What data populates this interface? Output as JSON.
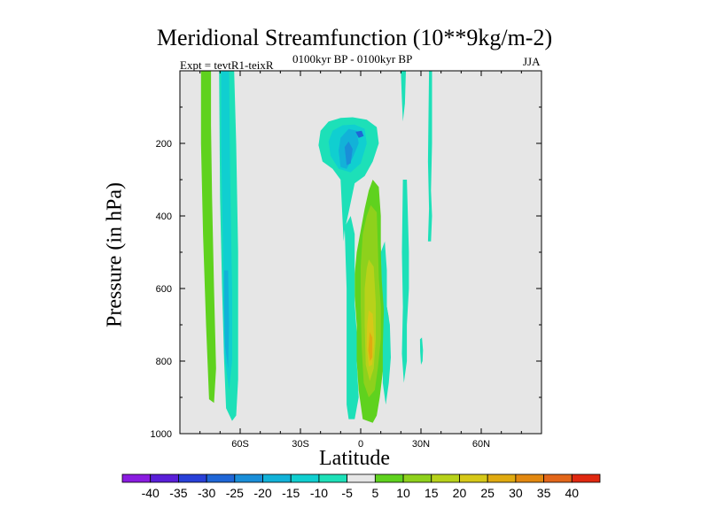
{
  "chart_data": {
    "type": "contour",
    "title": "Meridional Streamfunction (10**9kg/m-2)",
    "left_string": "Expt = tevtR1-teixR",
    "center_string": "0100kyr BP - 0100kyr BP",
    "right_string": "JJA",
    "xlabel": "Latitude",
    "ylabel": "Pressure (in hPa)",
    "xlim": [
      -90,
      90
    ],
    "ylim": [
      1000,
      0
    ],
    "x_ticks": [
      -60,
      -30,
      0,
      30,
      60
    ],
    "x_tick_labels": [
      "60S",
      "30S",
      "0",
      "30N",
      "60N"
    ],
    "y_ticks": [
      200,
      400,
      600,
      800,
      1000
    ],
    "y_tick_labels": [
      "200",
      "400",
      "600",
      "800",
      "1000"
    ],
    "missing_color": "#e6e6e6",
    "levels": [
      -40,
      -35,
      -30,
      -25,
      -20,
      -15,
      -10,
      -5,
      5,
      10,
      15,
      20,
      25,
      30,
      35,
      40
    ],
    "level_labels": [
      "-40",
      "-35",
      "-30",
      "-25",
      "-20",
      "-15",
      "-10",
      "-5",
      "5",
      "10",
      "15",
      "20",
      "25",
      "30",
      "35",
      "40"
    ],
    "colors": [
      "#8a1ce0",
      "#5a1fd8",
      "#2840d8",
      "#1f66d6",
      "#1a8ed8",
      "#12b2d8",
      "#10cfd0",
      "#1de0b8",
      "#e6e6e6",
      "#5fd21e",
      "#8ed11c",
      "#b7d21a",
      "#d6c818",
      "#e0aa10",
      "#e28810",
      "#e2661a",
      "#e02810"
    ],
    "features": [
      {
        "name": "sh-band-green",
        "value": 7,
        "color": "#5fd21e",
        "points": [
          [
            -79.5,
            0
          ],
          [
            -74.5,
            0
          ],
          [
            -74.5,
            150
          ],
          [
            -74,
            350
          ],
          [
            -73,
            600
          ],
          [
            -72,
            820
          ],
          [
            -73,
            915
          ],
          [
            -75.5,
            905
          ],
          [
            -77,
            700
          ],
          [
            -78.5,
            450
          ],
          [
            -79.5,
            200
          ]
        ]
      },
      {
        "name": "sh-band-outer",
        "value": -7,
        "color": "#1de0b8",
        "points": [
          [
            -70.5,
            0
          ],
          [
            -63,
            0
          ],
          [
            -62,
            200
          ],
          [
            -61,
            500
          ],
          [
            -61,
            700
          ],
          [
            -61,
            850
          ],
          [
            -62,
            950
          ],
          [
            -64,
            965
          ],
          [
            -67,
            930
          ],
          [
            -68,
            800
          ],
          [
            -69,
            600
          ],
          [
            -70,
            350
          ]
        ]
      },
      {
        "name": "sh-band-inner",
        "value": -12,
        "color": "#10cfd0",
        "points": [
          [
            -69.5,
            0
          ],
          [
            -65.5,
            0
          ],
          [
            -65,
            300
          ],
          [
            -64,
            600
          ],
          [
            -64,
            800
          ],
          [
            -65.5,
            880
          ],
          [
            -68,
            780
          ],
          [
            -68.5,
            500
          ],
          [
            -69.5,
            200
          ]
        ]
      },
      {
        "name": "sh-band-core",
        "value": -17,
        "color": "#12b2d8",
        "points": [
          [
            -68,
            550
          ],
          [
            -66,
            550
          ],
          [
            -65.5,
            700
          ],
          [
            -66,
            820
          ],
          [
            -67.5,
            760
          ],
          [
            -68,
            650
          ]
        ]
      },
      {
        "name": "upper-cell-outer",
        "value": -7,
        "color": "#1de0b8",
        "points": [
          [
            -20,
            165
          ],
          [
            -16,
            140
          ],
          [
            -10,
            130
          ],
          [
            -4,
            128
          ],
          [
            3,
            135
          ],
          [
            8,
            155
          ],
          [
            9,
            200
          ],
          [
            6,
            250
          ],
          [
            2,
            290
          ],
          [
            -3,
            310
          ],
          [
            -6,
            390
          ],
          [
            -8,
            440
          ],
          [
            -8.5,
            470
          ],
          [
            -10,
            300
          ],
          [
            -14,
            270
          ],
          [
            -19,
            250
          ],
          [
            -21,
            205
          ]
        ]
      },
      {
        "name": "upper-cell-mid",
        "value": -12,
        "color": "#10cfd0",
        "points": [
          [
            -14,
            165
          ],
          [
            -9,
            150
          ],
          [
            -3,
            148
          ],
          [
            2,
            160
          ],
          [
            3,
            200
          ],
          [
            0,
            255
          ],
          [
            -5,
            280
          ],
          [
            -11,
            270
          ],
          [
            -15,
            235
          ],
          [
            -16,
            195
          ]
        ]
      },
      {
        "name": "upper-cell-inner",
        "value": -17,
        "color": "#12b2d8",
        "points": [
          [
            -10,
            185
          ],
          [
            -6,
            160
          ],
          [
            -2,
            165
          ],
          [
            -1,
            200
          ],
          [
            -4,
            240
          ],
          [
            -7,
            270
          ],
          [
            -10,
            265
          ],
          [
            -11,
            220
          ]
        ]
      },
      {
        "name": "upper-cell-core",
        "value": -22,
        "color": "#1a8ed8",
        "points": [
          [
            -8,
            210
          ],
          [
            -6,
            195
          ],
          [
            -4,
            215
          ],
          [
            -5,
            255
          ],
          [
            -7,
            260
          ]
        ]
      },
      {
        "name": "upper-cell-dot",
        "value": -22,
        "color": "#1f66d6",
        "points": [
          [
            -2.5,
            168
          ],
          [
            0.5,
            165
          ],
          [
            1.5,
            180
          ],
          [
            -1,
            185
          ]
        ]
      },
      {
        "name": "tropics-pos-outer",
        "value": 7,
        "color": "#5fd21e",
        "points": [
          [
            6,
            300
          ],
          [
            9,
            320
          ],
          [
            10,
            400
          ],
          [
            10,
            480
          ],
          [
            10.5,
            560
          ],
          [
            12,
            620
          ],
          [
            14,
            680
          ],
          [
            13.5,
            760
          ],
          [
            11,
            830
          ],
          [
            9.5,
            900
          ],
          [
            8,
            950
          ],
          [
            6,
            970
          ],
          [
            1,
            960
          ],
          [
            -1,
            880
          ],
          [
            -2,
            800
          ],
          [
            -2,
            700
          ],
          [
            -3,
            620
          ],
          [
            -3,
            560
          ],
          [
            -2,
            500
          ],
          [
            0,
            440
          ],
          [
            2,
            380
          ],
          [
            4,
            330
          ]
        ]
      },
      {
        "name": "tropics-pos-15",
        "value": 12,
        "color": "#8ed11c",
        "points": [
          [
            5,
            370
          ],
          [
            8,
            390
          ],
          [
            8.5,
            480
          ],
          [
            9,
            570
          ],
          [
            10,
            650
          ],
          [
            10,
            740
          ],
          [
            8.5,
            820
          ],
          [
            7,
            880
          ],
          [
            4,
            900
          ],
          [
            1.5,
            860
          ],
          [
            0.5,
            760
          ],
          [
            0,
            650
          ],
          [
            0,
            540
          ],
          [
            1,
            450
          ],
          [
            3,
            400
          ]
        ]
      },
      {
        "name": "tropics-pos-20",
        "value": 17,
        "color": "#b7d21a",
        "points": [
          [
            4,
            520
          ],
          [
            6.5,
            540
          ],
          [
            7.5,
            640
          ],
          [
            7.5,
            740
          ],
          [
            6.5,
            820
          ],
          [
            4.5,
            855
          ],
          [
            2.5,
            810
          ],
          [
            2,
            700
          ],
          [
            2,
            600
          ],
          [
            3,
            545
          ]
        ]
      },
      {
        "name": "tropics-pos-25",
        "value": 22,
        "color": "#d6c818",
        "points": [
          [
            4,
            660
          ],
          [
            6,
            670
          ],
          [
            6.8,
            750
          ],
          [
            5.8,
            810
          ],
          [
            4,
            815
          ],
          [
            3,
            760
          ],
          [
            3.2,
            700
          ]
        ]
      },
      {
        "name": "tropics-pos-30",
        "value": 27,
        "color": "#e0aa10",
        "points": [
          [
            4.5,
            720
          ],
          [
            5.8,
            735
          ],
          [
            5.8,
            790
          ],
          [
            4.6,
            800
          ],
          [
            3.8,
            770
          ]
        ]
      },
      {
        "name": "eq-strip-cyan",
        "value": -7,
        "color": "#1de0b8",
        "points": [
          [
            -8,
            430
          ],
          [
            -5,
            400
          ],
          [
            -3,
            450
          ],
          [
            -3,
            560
          ],
          [
            -3,
            640
          ],
          [
            -2,
            720
          ],
          [
            -2,
            800
          ],
          [
            -1,
            900
          ],
          [
            -3,
            960
          ],
          [
            -6,
            960
          ],
          [
            -7,
            920
          ],
          [
            -7,
            800
          ],
          [
            -7,
            700
          ],
          [
            -7,
            600
          ],
          [
            -7.5,
            520
          ]
        ]
      },
      {
        "name": "ne-strip-cyan",
        "value": -7,
        "color": "#1de0b8",
        "points": [
          [
            10,
            500
          ],
          [
            12,
            470
          ],
          [
            13,
            550
          ],
          [
            13,
            650
          ],
          [
            14.5,
            700
          ],
          [
            15,
            790
          ],
          [
            14,
            860
          ],
          [
            12.5,
            920
          ],
          [
            11,
            860
          ],
          [
            11,
            760
          ],
          [
            11.5,
            660
          ],
          [
            10.5,
            580
          ]
        ]
      },
      {
        "name": "nh-strip-a",
        "value": -7,
        "color": "#1de0b8",
        "points": [
          [
            20,
            0
          ],
          [
            22.5,
            0
          ],
          [
            22,
            90
          ],
          [
            21,
            140
          ],
          [
            20.5,
            80
          ]
        ]
      },
      {
        "name": "nh-strip-b",
        "value": -7,
        "color": "#1de0b8",
        "points": [
          [
            21,
            300
          ],
          [
            23,
            300
          ],
          [
            24,
            500
          ],
          [
            24,
            600
          ],
          [
            23,
            700
          ],
          [
            23,
            800
          ],
          [
            21.5,
            860
          ],
          [
            20.5,
            780
          ],
          [
            21,
            650
          ],
          [
            20.5,
            500
          ]
        ]
      },
      {
        "name": "nh-strip-c",
        "value": -7,
        "color": "#1de0b8",
        "points": [
          [
            34,
            0
          ],
          [
            35.5,
            0
          ],
          [
            35.5,
            200
          ],
          [
            35,
            330
          ],
          [
            35.5,
            400
          ],
          [
            35,
            470
          ],
          [
            33.5,
            470
          ],
          [
            34,
            380
          ],
          [
            33.5,
            250
          ],
          [
            33.8,
            100
          ]
        ]
      },
      {
        "name": "nh-blob",
        "value": -7,
        "color": "#1de0b8",
        "points": [
          [
            29.5,
            740
          ],
          [
            30.5,
            735
          ],
          [
            31,
            770
          ],
          [
            30.8,
            800
          ],
          [
            30,
            810
          ],
          [
            29.6,
            775
          ]
        ]
      }
    ]
  }
}
